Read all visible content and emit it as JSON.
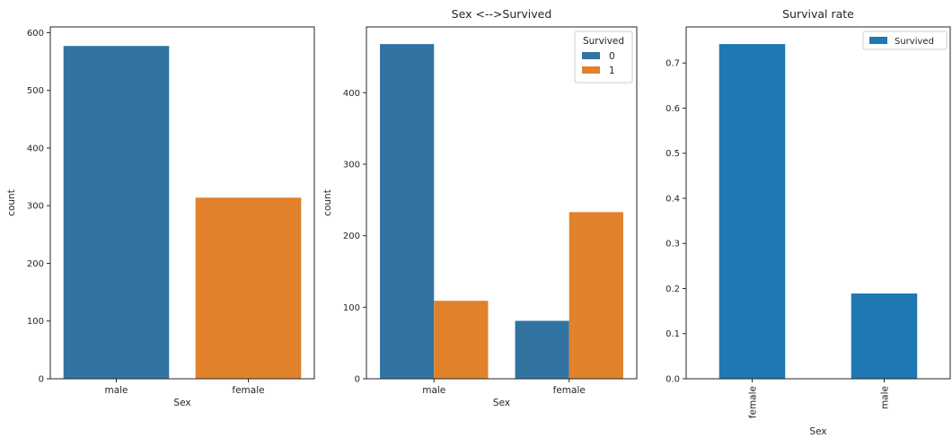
{
  "chart_data": [
    {
      "type": "bar",
      "title": "",
      "xlabel": "Sex",
      "ylabel": "count",
      "categories": [
        "male",
        "female"
      ],
      "values": [
        577,
        314
      ],
      "colors": [
        "#3274a1",
        "#e1812c"
      ],
      "ylim": [
        0,
        610
      ],
      "yticks": [
        0,
        100,
        200,
        300,
        400,
        500,
        600
      ],
      "grid": false
    },
    {
      "type": "bar",
      "title": "Sex <-->Survived",
      "xlabel": "Sex",
      "ylabel": "count",
      "categories": [
        "male",
        "female"
      ],
      "series": [
        {
          "name": "0",
          "values": [
            468,
            81
          ],
          "color": "#3274a1"
        },
        {
          "name": "1",
          "values": [
            109,
            233
          ],
          "color": "#e1812c"
        }
      ],
      "legend": {
        "title": "Survived",
        "placement": "top-right"
      },
      "ylim": [
        0,
        492
      ],
      "yticks": [
        0,
        100,
        200,
        300,
        400
      ],
      "grid": false
    },
    {
      "type": "bar",
      "title": "Survival rate",
      "xlabel": "Sex",
      "ylabel": "",
      "categories": [
        "female",
        "male"
      ],
      "series": [
        {
          "name": "Survived",
          "values": [
            0.742,
            0.189
          ],
          "color": "#1f77b4"
        }
      ],
      "legend": {
        "placement": "top-right"
      },
      "ylim": [
        0,
        0.78
      ],
      "yticks": [
        "0.0",
        "0.1",
        "0.2",
        "0.3",
        "0.4",
        "0.5",
        "0.6",
        "0.7"
      ],
      "xtick_rotation": "vertical",
      "grid": false
    }
  ]
}
